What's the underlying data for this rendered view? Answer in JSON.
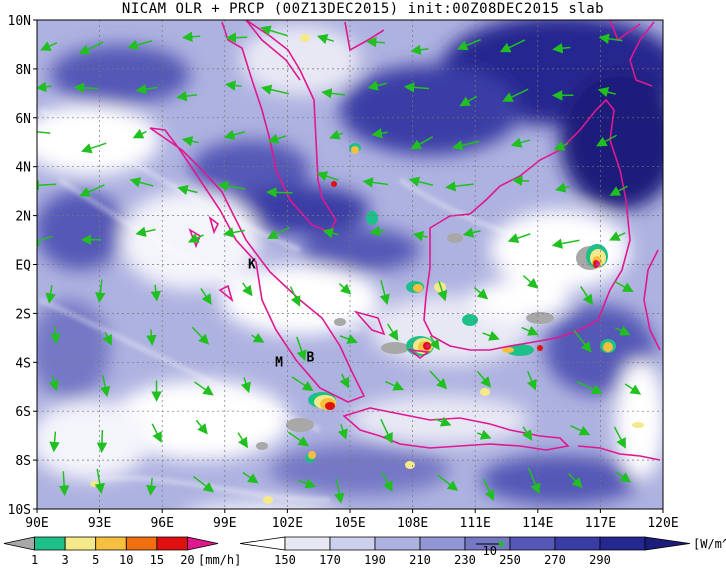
{
  "title": "NICAM OLR + PRCP (00Z13DEC2015) init:00Z08DEC2015 slab",
  "map": {
    "lon_labels": [
      "90E",
      "93E",
      "96E",
      "99E",
      "102E",
      "105E",
      "108E",
      "111E",
      "114E",
      "117E",
      "120E"
    ],
    "lat_labels": [
      "10N",
      "8N",
      "6N",
      "4N",
      "2N",
      "EQ",
      "2S",
      "4S",
      "6S",
      "8S",
      "10S"
    ],
    "places": [
      {
        "label": "K",
        "lon": 100.3,
        "lat": 0.0
      },
      {
        "label": "M",
        "lon": 101.6,
        "lat": -4.0
      },
      {
        "label": "B",
        "lon": 103.1,
        "lat": -3.8
      }
    ],
    "vector_ref_label": "10"
  },
  "colorbars": {
    "precip": {
      "ticks": [
        "1",
        "3",
        "5",
        "10",
        "15",
        "20"
      ],
      "unit": "[mm/h]",
      "colors": [
        "#a8a8a8",
        "#1ec08a",
        "#f5e98a",
        "#f5c040",
        "#f07010",
        "#e01010",
        "#e01890"
      ]
    },
    "olr": {
      "ticks": [
        "150",
        "170",
        "190",
        "210",
        "230",
        "250",
        "270",
        "290"
      ],
      "unit": "[W/m^2]",
      "colors": [
        "#ffffff",
        "#e8e8f5",
        "#cdd0ec",
        "#aeb2e0",
        "#9296d3",
        "#7478c5",
        "#5558b6",
        "#3a3ca5",
        "#252890",
        "#1a1d7a"
      ]
    }
  }
}
